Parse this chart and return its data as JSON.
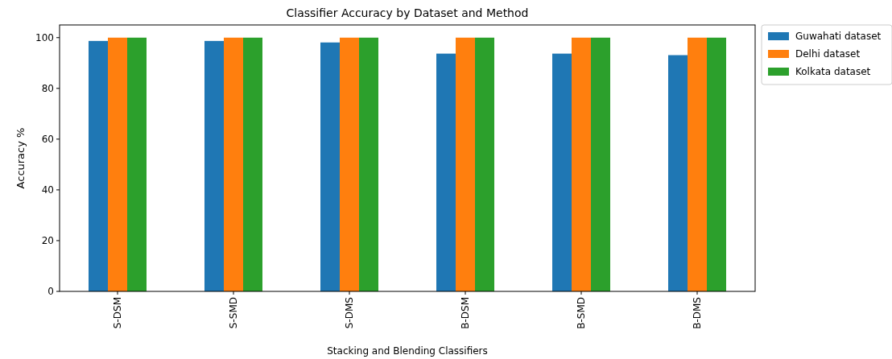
{
  "chart_data": {
    "type": "bar",
    "title": "Classifier Accuracy by Dataset and Method",
    "xlabel": "Stacking and Blending Classifiers",
    "ylabel": "Accuracy %",
    "categories": [
      "S-DSM",
      "S-SMD",
      "S-DMS",
      "B-DSM",
      "B-SMD",
      "B-DMS"
    ],
    "series": [
      {
        "name": "Guwahati dataset",
        "color": "#1f77b4",
        "values": [
          98.7,
          98.7,
          98.1,
          93.7,
          93.7,
          93.1
        ]
      },
      {
        "name": "Delhi dataset",
        "color": "#ff7f0e",
        "values": [
          100,
          100,
          100,
          100,
          100,
          100
        ]
      },
      {
        "name": "Kolkata dataset",
        "color": "#2ca02c",
        "values": [
          100,
          100,
          100,
          100,
          100,
          100
        ]
      }
    ],
    "ylim": [
      0,
      105
    ],
    "yticks": [
      0,
      20,
      40,
      60,
      80,
      100
    ],
    "grid": false,
    "legend": "top right"
  }
}
